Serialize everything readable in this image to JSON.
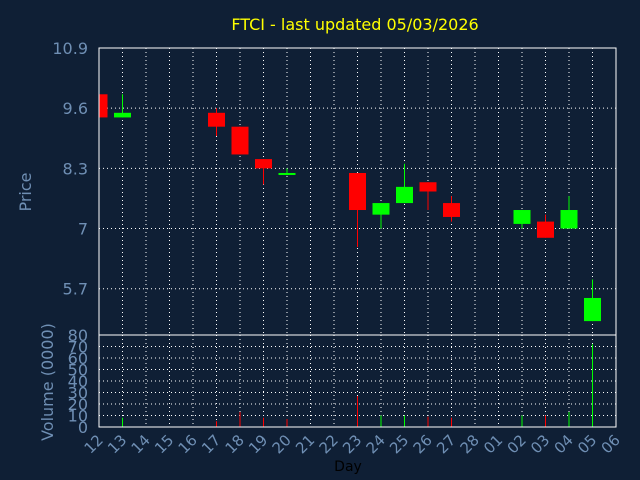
{
  "chart_data": [
    {
      "type": "candlestick",
      "title": "FTCI - last updated 05/03/2026",
      "ylabel": "Price",
      "xlabel": "Day",
      "ylim": [
        4.7,
        10.9
      ],
      "yticks": [
        "10.9",
        "9.6",
        "8.3",
        "7",
        "5.7"
      ],
      "ytick_values": [
        10.9,
        9.6,
        8.3,
        7.0,
        5.7
      ],
      "grid": true,
      "x": [
        "12",
        "13",
        "14",
        "15",
        "16",
        "17",
        "18",
        "19",
        "20",
        "21",
        "22",
        "23",
        "24",
        "25",
        "26",
        "27",
        "28",
        "01",
        "02",
        "03",
        "04",
        "05",
        "06"
      ],
      "series": [
        {
          "candles": [
            {
              "x": "12",
              "open": 9.9,
              "close": 9.4,
              "high": 9.9,
              "low": 9.4
            },
            {
              "x": "13",
              "open": 9.4,
              "close": 9.5,
              "high": 9.9,
              "low": 9.4
            },
            {
              "x": "17",
              "open": 9.5,
              "close": 9.2,
              "high": 9.6,
              "low": 9.0
            },
            {
              "x": "18",
              "open": 9.2,
              "close": 8.6,
              "high": 9.2,
              "low": 8.6
            },
            {
              "x": "19",
              "open": 8.5,
              "close": 8.3,
              "high": 8.5,
              "low": 7.95
            },
            {
              "x": "20",
              "open": 8.2,
              "close": 8.2,
              "high": 8.3,
              "low": 8.15
            },
            {
              "x": "23",
              "open": 8.2,
              "close": 7.4,
              "high": 8.2,
              "low": 6.6
            },
            {
              "x": "24",
              "open": 7.3,
              "close": 7.55,
              "high": 7.55,
              "low": 7.0
            },
            {
              "x": "25",
              "open": 7.55,
              "close": 7.9,
              "high": 8.4,
              "low": 7.55
            },
            {
              "x": "26",
              "open": 8.0,
              "close": 7.8,
              "high": 8.0,
              "low": 7.4
            },
            {
              "x": "27",
              "open": 7.55,
              "close": 7.25,
              "high": 7.7,
              "low": 7.15
            },
            {
              "x": "02",
              "open": 7.1,
              "close": 7.4,
              "high": 7.4,
              "low": 7.0
            },
            {
              "x": "03",
              "open": 7.15,
              "close": 6.8,
              "high": 7.3,
              "low": 6.8
            },
            {
              "x": "04",
              "open": 7.0,
              "close": 7.4,
              "high": 7.7,
              "low": 7.0
            },
            {
              "x": "05",
              "open": 5.0,
              "close": 5.5,
              "high": 5.9,
              "low": 5.0
            }
          ]
        }
      ],
      "colors": {
        "up": "#00ff00",
        "down": "#ff0000",
        "grid": "#ffffff",
        "text": "#6f8fb4",
        "title": "#ffff00",
        "frame": "#ffffff"
      }
    },
    {
      "type": "bar",
      "ylabel": "Volume (0000)",
      "ylim": [
        0,
        80
      ],
      "yticks": [
        "80",
        "70",
        "60",
        "50",
        "40",
        "30",
        "20",
        "10",
        "0"
      ],
      "ytick_values": [
        80,
        70,
        60,
        50,
        40,
        30,
        20,
        10,
        0
      ],
      "x": [
        "12",
        "13",
        "14",
        "15",
        "16",
        "17",
        "18",
        "19",
        "20",
        "21",
        "22",
        "23",
        "24",
        "25",
        "26",
        "27",
        "28",
        "01",
        "02",
        "03",
        "04",
        "05",
        "06"
      ],
      "values": [
        {
          "x": "13",
          "value": 8,
          "color": "#00ff00"
        },
        {
          "x": "17",
          "value": 5,
          "color": "#ff0000"
        },
        {
          "x": "18",
          "value": 13,
          "color": "#ff0000"
        },
        {
          "x": "19",
          "value": 8,
          "color": "#ff0000"
        },
        {
          "x": "20",
          "value": 7,
          "color": "#ff0000"
        },
        {
          "x": "23",
          "value": 27,
          "color": "#ff0000"
        },
        {
          "x": "24",
          "value": 10,
          "color": "#00ff00"
        },
        {
          "x": "25",
          "value": 10,
          "color": "#00ff00"
        },
        {
          "x": "26",
          "value": 9,
          "color": "#ff0000"
        },
        {
          "x": "27",
          "value": 8,
          "color": "#ff0000"
        },
        {
          "x": "02",
          "value": 10,
          "color": "#00ff00"
        },
        {
          "x": "03",
          "value": 10,
          "color": "#ff0000"
        },
        {
          "x": "04",
          "value": 13,
          "color": "#00ff00"
        },
        {
          "x": "05",
          "value": 72,
          "color": "#00ff00"
        }
      ]
    }
  ]
}
